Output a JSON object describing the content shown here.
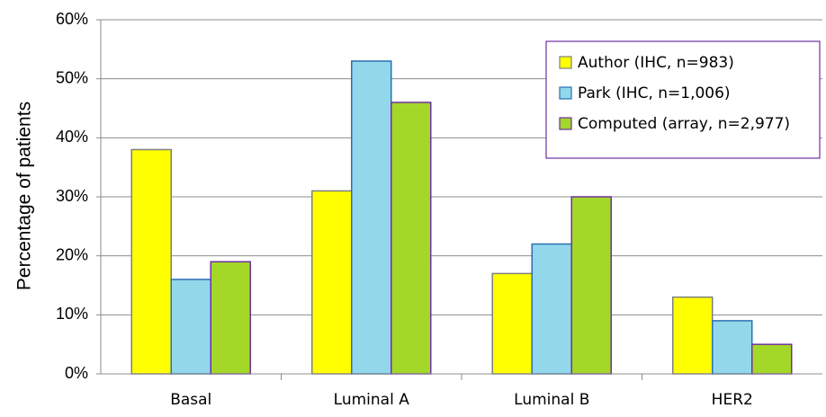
{
  "chart_data": {
    "type": "bar",
    "title": "",
    "xlabel": "",
    "ylabel": "Percentage of patients",
    "ylim": [
      0,
      60
    ],
    "yticks": [
      0,
      10,
      20,
      30,
      40,
      50,
      60
    ],
    "ytick_suffix": "%",
    "grid": true,
    "legend_position": "top-right",
    "categories": [
      "Basal",
      "Luminal A",
      "Luminal B",
      "HER2"
    ],
    "series": [
      {
        "name": "Author (IHC, n=983)",
        "values": [
          38,
          31,
          17,
          13
        ],
        "fill": "#ffff00",
        "stroke": "#7f7f7f"
      },
      {
        "name": "Park (IHC, n=1,006)",
        "values": [
          16,
          53,
          22,
          9
        ],
        "fill": "#93d7ea",
        "stroke": "#2a6fb3"
      },
      {
        "name": "Computed (array, n=2,977)",
        "values": [
          19,
          46,
          30,
          5
        ],
        "fill": "#a3d829",
        "stroke": "#7030a0"
      }
    ]
  }
}
